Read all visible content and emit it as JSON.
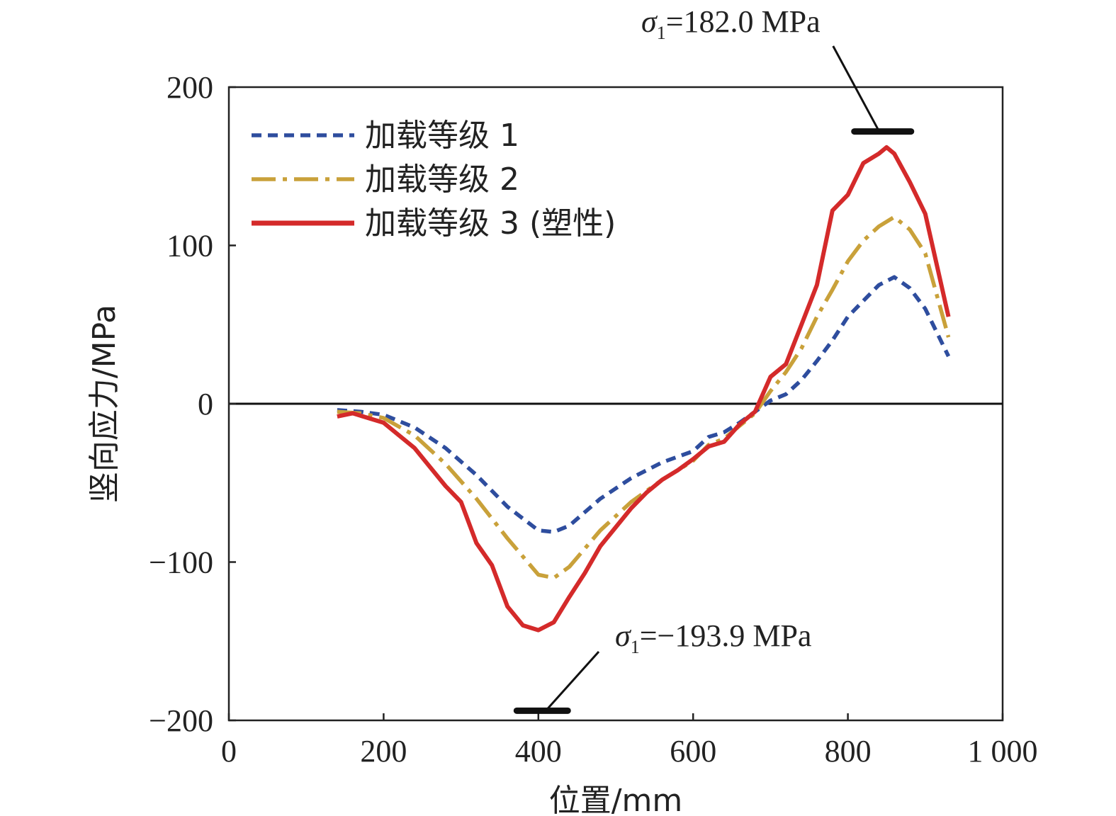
{
  "chart_data": {
    "type": "line",
    "xlabel": "位置/mm",
    "ylabel": "竖向应力/MPa",
    "xlim": [
      0,
      1000
    ],
    "ylim": [
      -200,
      200
    ],
    "xticks": [
      0,
      200,
      400,
      600,
      800,
      1000
    ],
    "xtick_labels": [
      "0",
      "200",
      "400",
      "600",
      "800",
      "1 000"
    ],
    "yticks": [
      -200,
      -100,
      0,
      100,
      200
    ],
    "ytick_labels": [
      "−200",
      "−100",
      "0",
      "100",
      "200"
    ],
    "grid": false,
    "legend_position": "top-left",
    "series": [
      {
        "name": "加载等级 1",
        "color": "#2e4d9e",
        "style": "dashed",
        "x": [
          140,
          170,
          200,
          240,
          280,
          320,
          360,
          400,
          420,
          440,
          480,
          520,
          560,
          600,
          620,
          640,
          660,
          680,
          700,
          720,
          740,
          760,
          780,
          800,
          820,
          840,
          860,
          880,
          900,
          930
        ],
        "y": [
          -4,
          -5,
          -7,
          -15,
          -28,
          -45,
          -65,
          -80,
          -81,
          -77,
          -60,
          -47,
          -37,
          -30,
          -21,
          -18,
          -12,
          -5,
          2,
          6,
          15,
          27,
          40,
          55,
          65,
          75,
          80,
          73,
          60,
          30
        ]
      },
      {
        "name": "加载等级 2",
        "color": "#c9a13a",
        "style": "dashdot",
        "x": [
          140,
          170,
          200,
          240,
          280,
          320,
          360,
          400,
          420,
          440,
          480,
          520,
          560,
          600,
          620,
          640,
          660,
          680,
          700,
          720,
          740,
          760,
          780,
          800,
          820,
          840,
          860,
          880,
          900,
          930
        ],
        "y": [
          -5,
          -6,
          -9,
          -20,
          -38,
          -60,
          -85,
          -108,
          -110,
          -103,
          -80,
          -62,
          -48,
          -36,
          -26,
          -22,
          -14,
          -6,
          8,
          20,
          35,
          55,
          72,
          90,
          103,
          112,
          118,
          110,
          95,
          42
        ]
      },
      {
        "name": "加载等级 3 (塑性)",
        "color": "#d42a2a",
        "style": "solid",
        "x": [
          140,
          160,
          180,
          200,
          220,
          240,
          260,
          280,
          300,
          320,
          340,
          360,
          380,
          400,
          420,
          440,
          460,
          480,
          500,
          520,
          540,
          560,
          580,
          600,
          620,
          640,
          660,
          680,
          700,
          720,
          740,
          760,
          780,
          800,
          820,
          840,
          850,
          860,
          880,
          900,
          930
        ],
        "y": [
          -8,
          -6,
          -9,
          -12,
          -20,
          -28,
          -40,
          -52,
          -62,
          -88,
          -102,
          -128,
          -140,
          -143,
          -138,
          -122,
          -107,
          -90,
          -78,
          -66,
          -56,
          -48,
          -42,
          -35,
          -27,
          -24,
          -13,
          -5,
          17,
          25,
          50,
          75,
          122,
          132,
          152,
          158,
          162,
          158,
          140,
          120,
          55
        ]
      }
    ],
    "annotations": [
      {
        "label": "σ",
        "subscript": "1",
        "text": "=182.0 MPa",
        "x": 845,
        "y": 172
      },
      {
        "label": "σ",
        "subscript": "1",
        "text": "=−193.9 MPa",
        "x": 405,
        "y": -193.9
      }
    ]
  }
}
